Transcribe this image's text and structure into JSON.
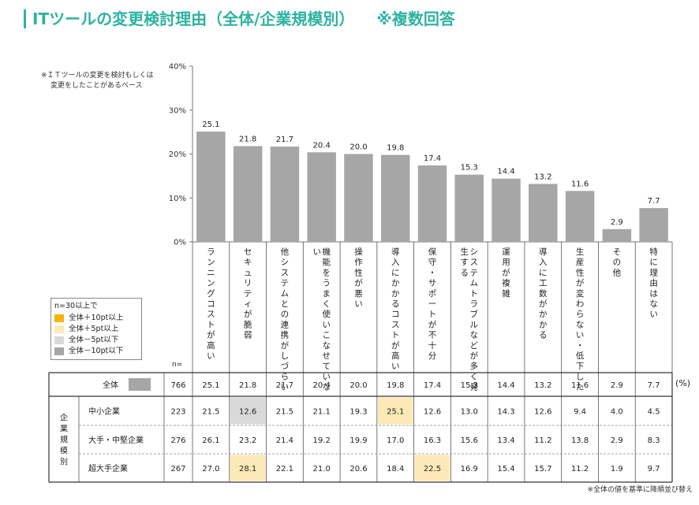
{
  "title": "ITツールの変更検討理由（全体/企業規模別）",
  "title_suffix": "※複数回答",
  "note": [
    "※ＩＴツールの変更を検討もしくは",
    "変更をしたことがあるベース"
  ],
  "legend": {
    "title": "n=30以上で",
    "items": [
      {
        "label": "全体＋10pt以上",
        "color": "#f5b400"
      },
      {
        "label": "全体＋5pt以上",
        "color": "#fde9b8"
      },
      {
        "label": "全体－5pt以下",
        "color": "#d9d9d9"
      },
      {
        "label": "全体－10pt以下",
        "color": "#a6a6a6"
      }
    ]
  },
  "n_label": "n=",
  "unit_label": "(%)",
  "footnote": "※全体の値を基準に降順並び替え",
  "chart_data": {
    "type": "bar",
    "ylim": [
      0,
      40
    ],
    "yticks": [
      "0%",
      "10%",
      "20%",
      "30%",
      "40%"
    ],
    "bar_color": "#a6a6a6",
    "categories": [
      "ランニングコストが高い",
      "セキュリティが脆弱",
      "他システムとの連携がしづらい",
      "機能をうまく使いこなせていない",
      "操作性が悪い",
      "導入にかかるコストが高い",
      "保守・サポートが不十分",
      "システムトラブルなどが多く発生する",
      "運用が複雑",
      "導入に工数がかかる",
      "生産性が変わらない・低下した",
      "その他",
      "特に理由はない"
    ],
    "values": [
      25.1,
      21.8,
      21.7,
      20.4,
      20.0,
      19.8,
      17.4,
      15.3,
      14.4,
      13.2,
      11.6,
      2.9,
      7.7
    ],
    "value_labels": [
      "25.1",
      "21.8",
      "21.7",
      "20.4",
      "20.0",
      "19.8",
      "17.4",
      "15.3",
      "14.4",
      "13.2",
      "11.6",
      "2.9",
      "7.7"
    ]
  },
  "table": {
    "group_label": "企業規模別",
    "rows": [
      {
        "label": "全体",
        "n": "766",
        "values": [
          "25.1",
          "21.8",
          "21.7",
          "20.4",
          "20.0",
          "19.8",
          "17.4",
          "15.3",
          "14.4",
          "13.2",
          "11.6",
          "2.9",
          "7.7"
        ],
        "highlight": {}
      },
      {
        "label": "中小企業",
        "n": "223",
        "values": [
          "21.5",
          "12.6",
          "21.5",
          "21.1",
          "19.3",
          "25.1",
          "12.6",
          "13.0",
          "14.3",
          "12.6",
          "9.4",
          "4.0",
          "4.5"
        ],
        "highlight": {
          "1": "#d9d9d9",
          "5": "#fde9b8"
        }
      },
      {
        "label": "大手・中堅企業",
        "n": "276",
        "values": [
          "26.1",
          "23.2",
          "21.4",
          "19.2",
          "19.9",
          "17.0",
          "16.3",
          "15.6",
          "13.4",
          "11.2",
          "13.8",
          "2.9",
          "8.3"
        ],
        "highlight": {}
      },
      {
        "label": "超大手企業",
        "n": "267",
        "values": [
          "27.0",
          "28.1",
          "22.1",
          "21.0",
          "20.6",
          "18.4",
          "22.5",
          "16.9",
          "15.4",
          "15.7",
          "11.2",
          "1.9",
          "9.7"
        ],
        "highlight": {
          "1": "#fde9b8",
          "6": "#fde9b8"
        }
      }
    ]
  }
}
